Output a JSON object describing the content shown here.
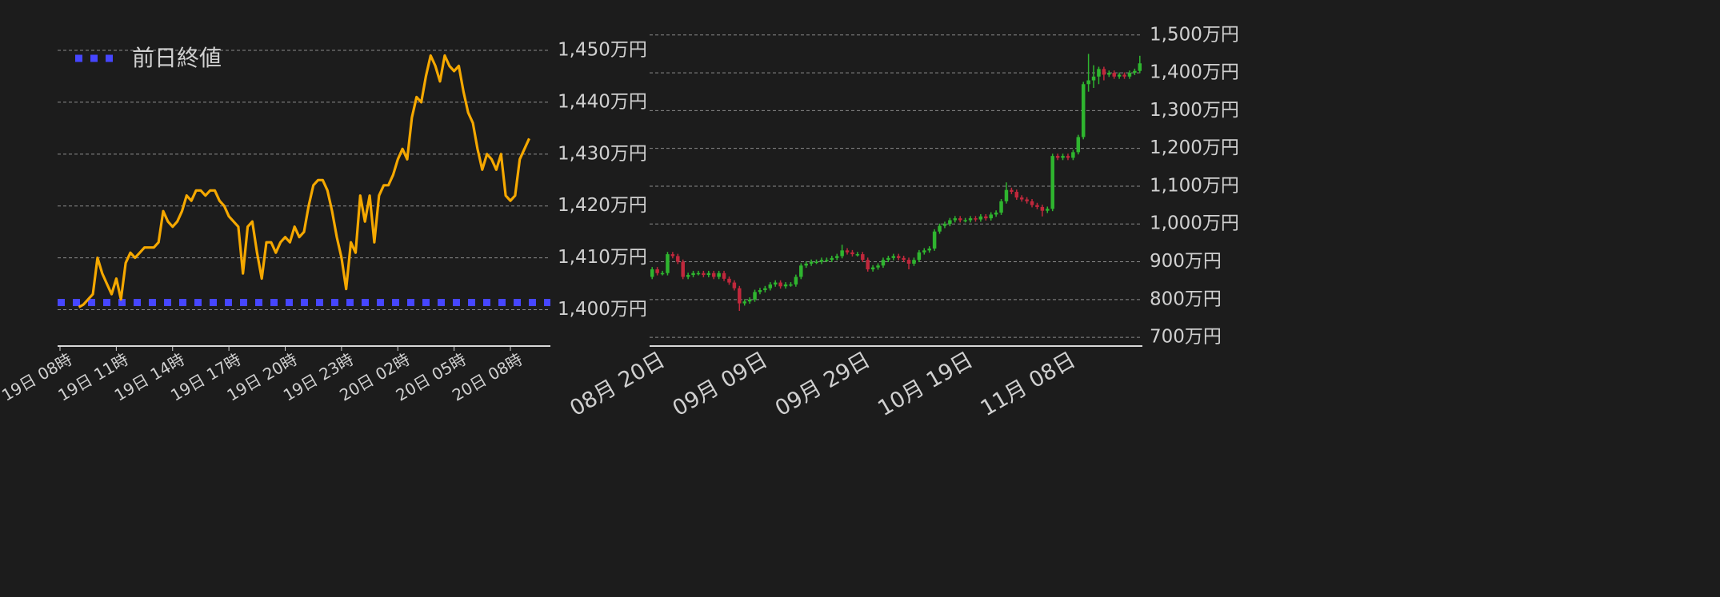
{
  "chart_data": [
    {
      "type": "line",
      "color": "#f5a800",
      "grid": true,
      "categories": [
        "19日 08時",
        null,
        null,
        null,
        null,
        null,
        null,
        null,
        null,
        null,
        null,
        null,
        "19日 11時",
        null,
        null,
        null,
        null,
        null,
        null,
        null,
        null,
        null,
        null,
        null,
        "19日 14時",
        null,
        null,
        null,
        null,
        null,
        null,
        null,
        null,
        null,
        null,
        null,
        "19日 17時",
        null,
        null,
        null,
        null,
        null,
        null,
        null,
        null,
        null,
        null,
        null,
        "19日 20時",
        null,
        null,
        null,
        null,
        null,
        null,
        null,
        null,
        null,
        null,
        null,
        "19日 23時",
        null,
        null,
        null,
        null,
        null,
        null,
        null,
        null,
        null,
        null,
        null,
        "20日 02時",
        null,
        null,
        null,
        null,
        null,
        null,
        null,
        null,
        null,
        null,
        null,
        "20日 05時",
        null,
        null,
        null,
        null,
        null,
        null,
        null,
        null,
        null,
        null,
        null,
        "20日 08時",
        null,
        null,
        null,
        null
      ],
      "values": [
        null,
        null,
        null,
        null,
        1400.5,
        1401,
        1402,
        1403,
        1410,
        1407,
        1405,
        1403,
        1406,
        1402,
        1409,
        1411,
        1410,
        1411,
        1412,
        1412,
        1412,
        1413,
        1419,
        1417,
        1416,
        1417,
        1419,
        1422,
        1421,
        1423,
        1423,
        1422,
        1423,
        1423,
        1421,
        1420,
        1418,
        1417,
        1416,
        1407,
        1416,
        1417,
        1411,
        1406,
        1413,
        1413,
        1411,
        1413,
        1414,
        1413,
        1416,
        1414,
        1415,
        1420,
        1424,
        1425,
        1425,
        1423,
        1419,
        1414,
        1410,
        1404,
        1413,
        1411,
        1422,
        1417,
        1422,
        1413,
        1422,
        1424,
        1424,
        1426,
        1429,
        1431,
        1429,
        1437,
        1441,
        1440,
        1445,
        1449,
        1447,
        1444,
        1449,
        1447,
        1446,
        1447,
        1442,
        1438,
        1436,
        1431,
        1427,
        1430,
        1429,
        1427,
        1430,
        1422,
        1421,
        1422,
        1429,
        1431,
        1433
      ],
      "reference_line": {
        "name": "前日終値",
        "value": 1401.4,
        "color": "#4646ff"
      },
      "ylim": [
        1393,
        1452
      ],
      "yticks": [
        {
          "value": 1400,
          "label": "1,400万円"
        },
        {
          "value": 1410,
          "label": "1,410万円"
        },
        {
          "value": 1420,
          "label": "1,420万円"
        },
        {
          "value": 1430,
          "label": "1,430万円"
        },
        {
          "value": 1440,
          "label": "1,440万円"
        },
        {
          "value": 1450,
          "label": "1,450万円"
        }
      ]
    },
    {
      "type": "candlestick",
      "up_color": "#2fb52f",
      "down_color": "#c0283c",
      "grid": true,
      "categories": [
        "08月 20日",
        null,
        null,
        null,
        null,
        null,
        null,
        null,
        null,
        null,
        null,
        null,
        null,
        null,
        null,
        null,
        null,
        null,
        null,
        null,
        "09月 09日",
        null,
        null,
        null,
        null,
        null,
        null,
        null,
        null,
        null,
        null,
        null,
        null,
        null,
        null,
        null,
        null,
        null,
        null,
        null,
        "09月 29日",
        null,
        null,
        null,
        null,
        null,
        null,
        null,
        null,
        null,
        null,
        null,
        null,
        null,
        null,
        null,
        null,
        null,
        null,
        null,
        "10月 19日",
        null,
        null,
        null,
        null,
        null,
        null,
        null,
        null,
        null,
        null,
        null,
        null,
        null,
        null,
        null,
        null,
        null,
        null,
        null,
        "11月 08日",
        null,
        null,
        null,
        null,
        null,
        null,
        null,
        null,
        null,
        null,
        null,
        null,
        null,
        null,
        null
      ],
      "open": [
        860,
        880,
        870,
        870,
        920,
        915,
        900,
        860,
        865,
        870,
        870,
        865,
        870,
        860,
        870,
        855,
        845,
        830,
        790,
        795,
        800,
        820,
        825,
        830,
        840,
        845,
        835,
        840,
        840,
        860,
        890,
        895,
        900,
        900,
        905,
        905,
        910,
        915,
        930,
        925,
        920,
        920,
        905,
        880,
        885,
        890,
        905,
        910,
        915,
        910,
        905,
        895,
        905,
        925,
        930,
        935,
        980,
        995,
        1000,
        1010,
        1015,
        1010,
        1010,
        1015,
        1012,
        1020,
        1015,
        1025,
        1030,
        1060,
        1090,
        1085,
        1070,
        1065,
        1060,
        1050,
        1045,
        1035,
        1040,
        1180,
        1175,
        1180,
        1175,
        1190,
        1230,
        1370,
        1380,
        1390,
        1410,
        1395,
        1400,
        1390,
        1395,
        1390,
        1400,
        1405
      ],
      "high": [
        886,
        886,
        876,
        926,
        926,
        921,
        906,
        871,
        876,
        876,
        876,
        876,
        876,
        876,
        876,
        861,
        851,
        836,
        801,
        806,
        826,
        831,
        836,
        846,
        851,
        851,
        846,
        846,
        866,
        896,
        901,
        906,
        906,
        911,
        911,
        916,
        921,
        945,
        936,
        931,
        926,
        926,
        911,
        891,
        896,
        911,
        916,
        921,
        921,
        916,
        911,
        911,
        931,
        936,
        941,
        986,
        1001,
        1006,
        1016,
        1021,
        1021,
        1016,
        1021,
        1021,
        1026,
        1026,
        1031,
        1036,
        1066,
        1110,
        1096,
        1091,
        1076,
        1071,
        1066,
        1056,
        1051,
        1046,
        1186,
        1186,
        1186,
        1186,
        1196,
        1236,
        1376,
        1450,
        1420,
        1416,
        1416,
        1406,
        1406,
        1401,
        1401,
        1406,
        1411,
        1445
      ],
      "low": [
        854,
        864,
        864,
        864,
        909,
        894,
        854,
        854,
        859,
        864,
        859,
        859,
        854,
        854,
        849,
        839,
        824,
        770,
        784,
        789,
        794,
        814,
        819,
        824,
        834,
        829,
        829,
        834,
        834,
        854,
        884,
        889,
        894,
        894,
        899,
        899,
        904,
        909,
        919,
        914,
        914,
        899,
        874,
        874,
        879,
        884,
        899,
        904,
        904,
        899,
        880,
        889,
        899,
        919,
        924,
        929,
        974,
        989,
        994,
        1004,
        1004,
        1004,
        1004,
        1006,
        1006,
        1009,
        1009,
        1019,
        1024,
        1054,
        1079,
        1064,
        1059,
        1054,
        1044,
        1039,
        1020,
        1029,
        1034,
        1169,
        1169,
        1169,
        1169,
        1184,
        1224,
        1350,
        1360,
        1370,
        1380,
        1389,
        1384,
        1384,
        1384,
        1384,
        1394,
        1399
      ],
      "close": [
        880,
        870,
        870,
        920,
        915,
        900,
        860,
        865,
        870,
        870,
        865,
        870,
        860,
        870,
        855,
        845,
        830,
        790,
        795,
        800,
        820,
        825,
        830,
        840,
        845,
        835,
        840,
        840,
        860,
        890,
        895,
        900,
        900,
        905,
        905,
        910,
        915,
        930,
        925,
        920,
        920,
        905,
        880,
        885,
        890,
        905,
        910,
        915,
        910,
        905,
        895,
        905,
        925,
        930,
        935,
        980,
        995,
        1000,
        1010,
        1015,
        1010,
        1010,
        1015,
        1012,
        1020,
        1015,
        1025,
        1030,
        1060,
        1090,
        1085,
        1070,
        1065,
        1060,
        1050,
        1045,
        1035,
        1040,
        1180,
        1175,
        1180,
        1175,
        1190,
        1230,
        1370,
        1380,
        1390,
        1410,
        1395,
        1400,
        1390,
        1395,
        1390,
        1400,
        1405,
        1425
      ],
      "ylim": [
        677,
        1508
      ],
      "yticks": [
        {
          "value": 700,
          "label": "700万円"
        },
        {
          "value": 800,
          "label": "800万円"
        },
        {
          "value": 900,
          "label": "900万円"
        },
        {
          "value": 1000,
          "label": "1,000万円"
        },
        {
          "value": 1100,
          "label": "1,100万円"
        },
        {
          "value": 1200,
          "label": "1,200万円"
        },
        {
          "value": 1300,
          "label": "1,300万円"
        },
        {
          "value": 1400,
          "label": "1,400万円"
        },
        {
          "value": 1500,
          "label": "1,500万円"
        }
      ]
    }
  ]
}
